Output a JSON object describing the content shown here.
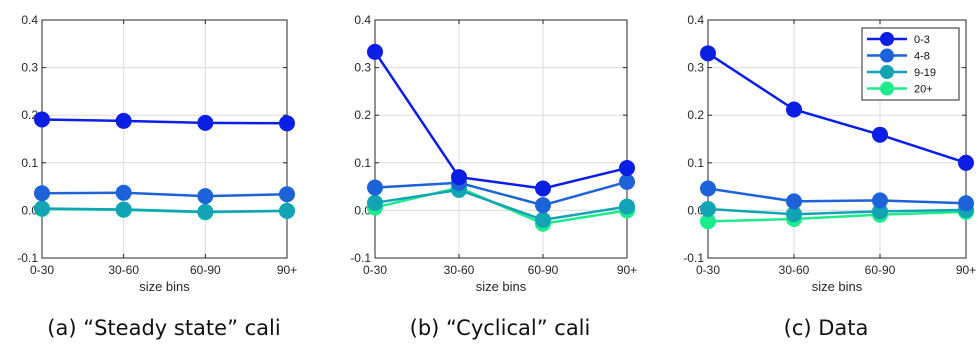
{
  "chart_data": [
    {
      "type": "line",
      "caption": "(a) “Steady state” cali",
      "categories": [
        "0-30",
        "30-60",
        "60-90",
        "90+"
      ],
      "xlabel": "size bins",
      "ylabel": "",
      "ylim": [
        -0.1,
        0.4
      ],
      "yticks": [
        "-0.1",
        "0.0",
        "0.1",
        "0.2",
        "0.3",
        "0.4"
      ],
      "grid": true,
      "legend": null,
      "series": [
        {
          "name": "0-3",
          "color": "#0a1ee6",
          "values": [
            0.191,
            0.188,
            0.184,
            0.183
          ]
        },
        {
          "name": "4-8",
          "color": "#1c62d8",
          "values": [
            0.036,
            0.037,
            0.03,
            0.034
          ]
        },
        {
          "name": "9-19",
          "color": "#12a4b4",
          "values": [
            0.004,
            0.002,
            -0.003,
            -0.001
          ]
        },
        {
          "name": "20+",
          "color": "#1eec8c",
          "values": [
            0.003,
            0.001,
            -0.004,
            -0.001
          ]
        }
      ]
    },
    {
      "type": "line",
      "caption": "(b) “Cyclical” cali",
      "categories": [
        "0-30",
        "30-60",
        "60-90",
        "90+"
      ],
      "xlabel": "size bins",
      "ylabel": "",
      "ylim": [
        -0.1,
        0.4
      ],
      "yticks": [
        "-0.1",
        "0.0",
        "0.1",
        "0.2",
        "0.3",
        "0.4"
      ],
      "grid": true,
      "legend": null,
      "series": [
        {
          "name": "0-3",
          "color": "#0a1ee6",
          "values": [
            0.333,
            0.07,
            0.046,
            0.089
          ]
        },
        {
          "name": "4-8",
          "color": "#1c62d8",
          "values": [
            0.048,
            0.058,
            0.011,
            0.06
          ]
        },
        {
          "name": "9-19",
          "color": "#12a4b4",
          "values": [
            0.016,
            0.043,
            -0.02,
            0.008
          ]
        },
        {
          "name": "20+",
          "color": "#1eec8c",
          "values": [
            0.006,
            0.048,
            -0.028,
            0.0
          ]
        }
      ]
    },
    {
      "type": "line",
      "caption": "(c) Data",
      "categories": [
        "0-30",
        "30-60",
        "60-90",
        "90+"
      ],
      "xlabel": "size bins",
      "ylabel": "",
      "ylim": [
        -0.1,
        0.4
      ],
      "yticks": [
        "-0.1",
        "0.0",
        "0.1",
        "0.2",
        "0.3",
        "0.4"
      ],
      "grid": true,
      "legend": "top-right",
      "series": [
        {
          "name": "0-3",
          "color": "#0a1ee6",
          "values": [
            0.33,
            0.212,
            0.159,
            0.1
          ]
        },
        {
          "name": "4-8",
          "color": "#1c62d8",
          "values": [
            0.046,
            0.019,
            0.021,
            0.015
          ]
        },
        {
          "name": "9-19",
          "color": "#12a4b4",
          "values": [
            0.003,
            -0.008,
            -0.002,
            0.001
          ]
        },
        {
          "name": "20+",
          "color": "#1eec8c",
          "values": [
            -0.023,
            -0.018,
            -0.009,
            -0.003
          ]
        }
      ]
    }
  ]
}
